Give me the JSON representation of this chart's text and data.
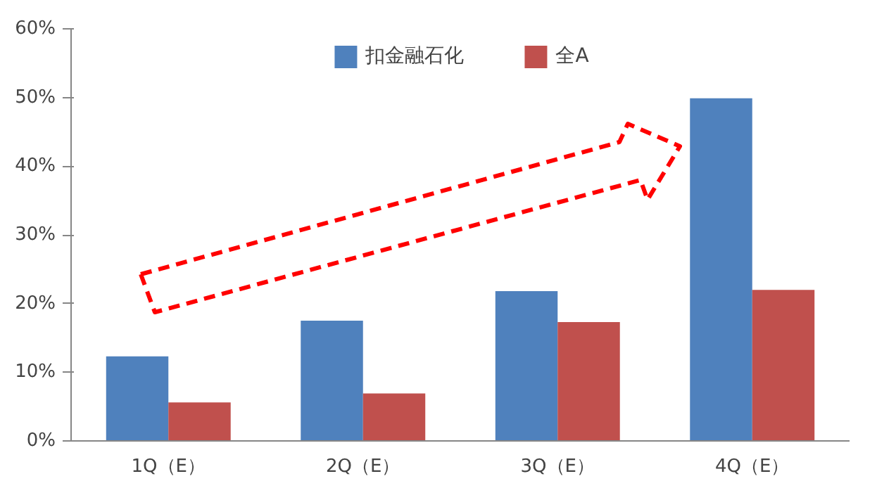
{
  "chart_data": {
    "type": "bar",
    "categories": [
      "1Q（E）",
      "2Q（E）",
      "3Q（E）",
      "4Q（E）"
    ],
    "series": [
      {
        "name": "扣金融石化",
        "color": "#4f81bd",
        "values": [
          12.3,
          17.5,
          21.8,
          49.9
        ]
      },
      {
        "name": "全A",
        "color": "#c0504d",
        "values": [
          5.6,
          6.9,
          17.3,
          22.0
        ]
      }
    ],
    "ylim": [
      0,
      60
    ],
    "yticks": [
      {
        "value": 0,
        "label": "0%"
      },
      {
        "value": 10,
        "label": "10%"
      },
      {
        "value": 20,
        "label": "20%"
      },
      {
        "value": 30,
        "label": "30%"
      },
      {
        "value": 40,
        "label": "40%"
      },
      {
        "value": 50,
        "label": "50%"
      },
      {
        "value": 60,
        "label": "60%"
      }
    ],
    "grid": false,
    "legend": "top"
  }
}
